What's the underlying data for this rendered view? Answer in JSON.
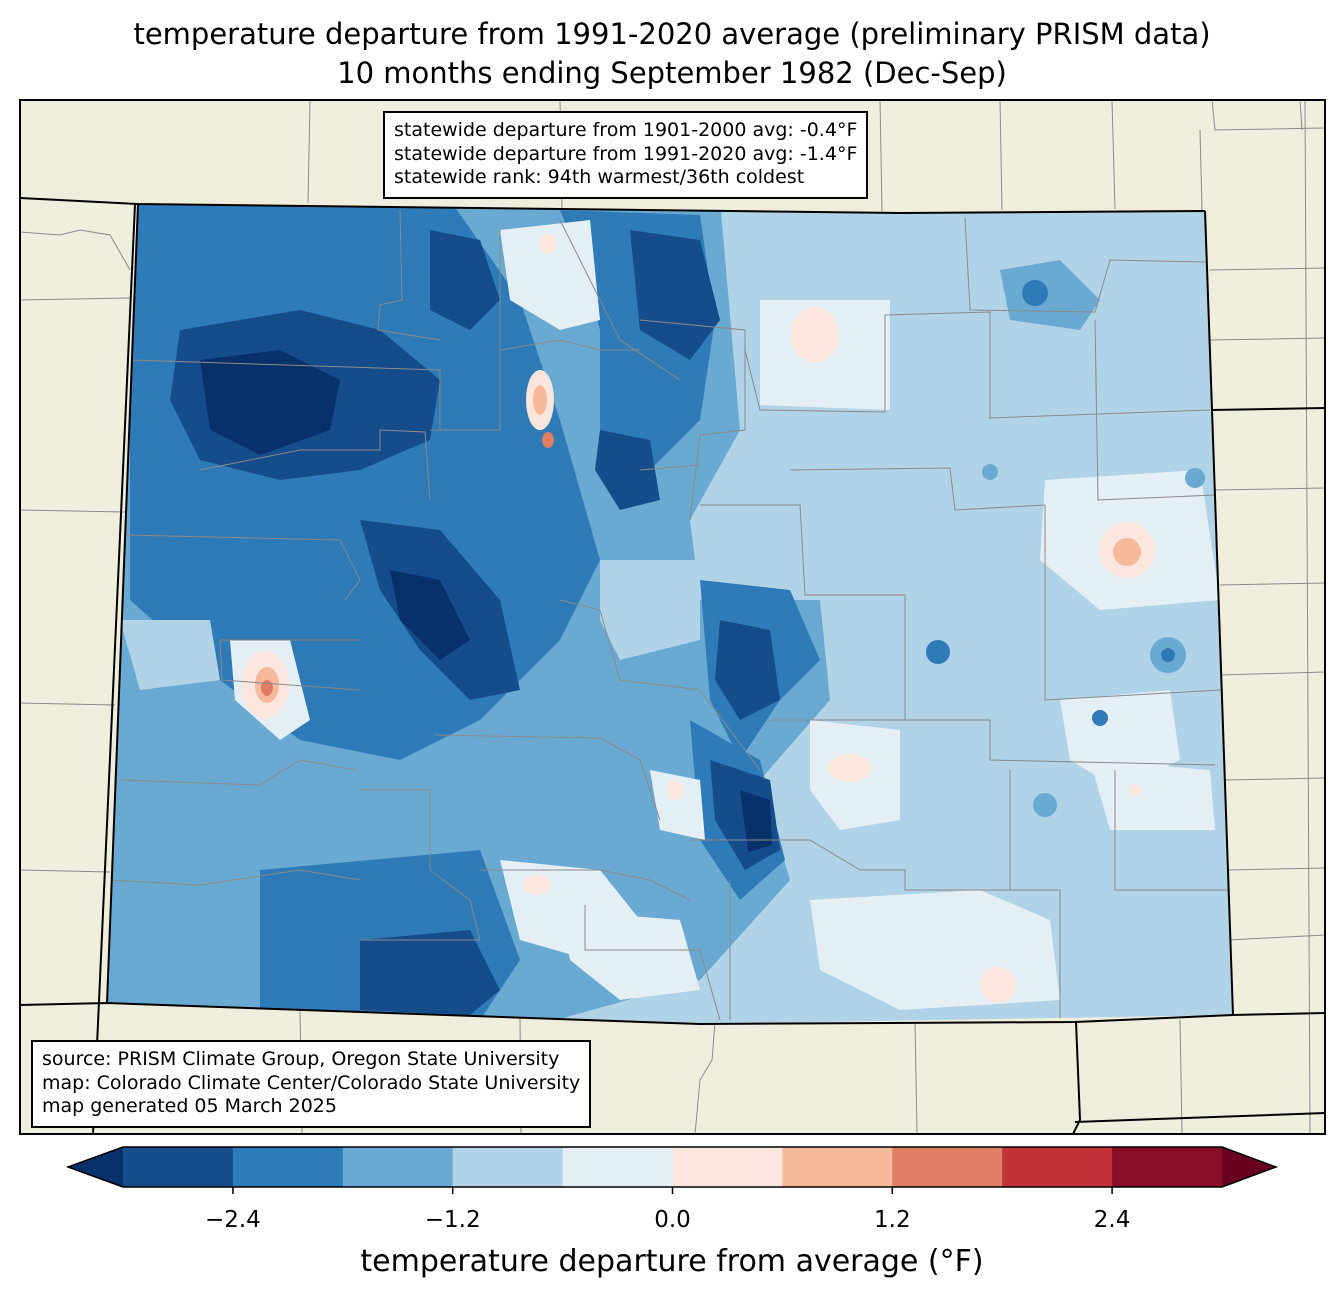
{
  "title": {
    "line1": "temperature departure from 1991-2020 average (preliminary PRISM data)",
    "line2": "10 months ending September 1982 (Dec-Sep)"
  },
  "stats": {
    "line1": "statewide departure from 1901-2000 avg: -0.4°F",
    "line2": "statewide departure from 1991-2020 avg: -1.4°F",
    "line3": "statewide rank: 94th warmest/36th coldest"
  },
  "source": {
    "line1": "source: PRISM Climate Group, Oregon State University",
    "line2": "map: Colorado Climate Center/Colorado State University",
    "line3": "map generated 05 March 2025"
  },
  "colorbar": {
    "label": "temperature departure from average (°F)",
    "levels": [
      -3.0,
      -2.4,
      -1.8,
      -1.2,
      -0.6,
      0.0,
      0.6,
      1.2,
      1.8,
      2.4,
      3.0
    ],
    "colors": [
      "#154c8a",
      "#2f7bb8",
      "#6aaad2",
      "#b0d3e7",
      "#e4eef5",
      "#fae6dd",
      "#f7b99c",
      "#e07e65",
      "#bf3338",
      "#870e26"
    ],
    "under_color": "#08306b",
    "over_color": "#67001f",
    "ticks": [
      "−2.4",
      "−1.2",
      "0.0",
      "1.2",
      "2.4"
    ]
  },
  "map": {
    "background_color": "#efeedc",
    "state": "Colorado"
  }
}
